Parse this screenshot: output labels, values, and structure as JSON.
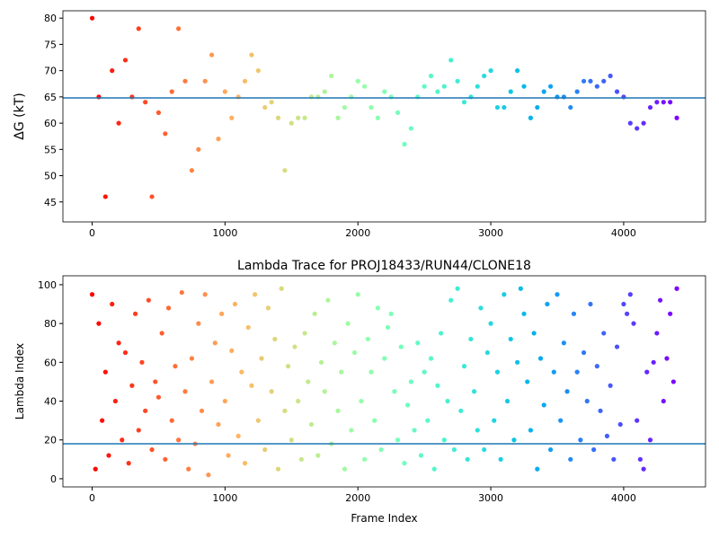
{
  "chart_data": [
    {
      "type": "scatter",
      "ylabel": "ΔG (kT)",
      "colormap": "rainbow_r",
      "hline": 64.8,
      "hline_color": "#1f77b4",
      "xlim": [
        -220,
        4616
      ],
      "xticks": [
        0,
        1000,
        2000,
        3000,
        4000
      ],
      "ylim": [
        41.2,
        81.4
      ],
      "yticks": [
        45,
        50,
        55,
        60,
        65,
        70,
        75,
        80
      ],
      "x": [
        0,
        50,
        100,
        150,
        200,
        250,
        300,
        350,
        400,
        450,
        500,
        550,
        600,
        650,
        700,
        750,
        800,
        850,
        900,
        950,
        1000,
        1050,
        1100,
        1150,
        1200,
        1250,
        1300,
        1350,
        1400,
        1450,
        1500,
        1550,
        1600,
        1650,
        1700,
        1750,
        1800,
        1850,
        1900,
        1950,
        2000,
        2050,
        2100,
        2150,
        2200,
        2250,
        2300,
        2350,
        2400,
        2450,
        2500,
        2550,
        2600,
        2650,
        2700,
        2750,
        2800,
        2850,
        2900,
        2950,
        3000,
        3050,
        3100,
        3150,
        3200,
        3250,
        3300,
        3350,
        3400,
        3450,
        3500,
        3550,
        3600,
        3650,
        3700,
        3750,
        3800,
        3850,
        3900,
        3950,
        4000,
        4050,
        4100,
        4150,
        4200,
        4250,
        4300,
        4350,
        4400
      ],
      "y": [
        80,
        65,
        46,
        70,
        60,
        72,
        65,
        78,
        64,
        46,
        62,
        58,
        66,
        78,
        68,
        51,
        55,
        68,
        73,
        57,
        66,
        61,
        65,
        68,
        73,
        70,
        63,
        64,
        61,
        51,
        60,
        61,
        61,
        65,
        65,
        66,
        69,
        61,
        63,
        65,
        68,
        67,
        63,
        61,
        66,
        65,
        62,
        56,
        59,
        65,
        67,
        69,
        66,
        67,
        72,
        68,
        64,
        65,
        67,
        69,
        70,
        63,
        63,
        66,
        70,
        67,
        61,
        63,
        66,
        67,
        65,
        65,
        63,
        66,
        68,
        68,
        67,
        68,
        69,
        66,
        65,
        60,
        59,
        60,
        63,
        64,
        64,
        64,
        61
      ]
    },
    {
      "type": "scatter",
      "title": "Lambda Trace for PROJ18433/RUN44/CLONE18",
      "xlabel": "Frame Index",
      "ylabel": "Lambda Index",
      "colormap": "rainbow_r",
      "hline": 18,
      "hline_color": "#1f77b4",
      "xlim": [
        -220,
        4616
      ],
      "xticks": [
        0,
        1000,
        2000,
        3000,
        4000
      ],
      "ylim": [
        -4.2,
        104.6
      ],
      "yticks": [
        0,
        20,
        40,
        60,
        80,
        100
      ],
      "x": [
        0,
        25,
        50,
        75,
        100,
        125,
        150,
        175,
        200,
        225,
        250,
        275,
        300,
        325,
        350,
        375,
        400,
        425,
        450,
        475,
        500,
        525,
        550,
        575,
        600,
        625,
        650,
        675,
        700,
        725,
        750,
        775,
        800,
        825,
        850,
        875,
        900,
        925,
        950,
        975,
        1000,
        1025,
        1050,
        1075,
        1100,
        1125,
        1150,
        1175,
        1200,
        1225,
        1250,
        1275,
        1300,
        1325,
        1350,
        1375,
        1400,
        1425,
        1450,
        1475,
        1500,
        1525,
        1550,
        1575,
        1600,
        1625,
        1650,
        1675,
        1700,
        1725,
        1750,
        1775,
        1800,
        1825,
        1850,
        1875,
        1900,
        1925,
        1950,
        1975,
        2000,
        2025,
        2050,
        2075,
        2100,
        2125,
        2150,
        2175,
        2200,
        2225,
        2250,
        2275,
        2300,
        2325,
        2350,
        2375,
        2400,
        2425,
        2450,
        2475,
        2500,
        2525,
        2550,
        2575,
        2600,
        2625,
        2650,
        2675,
        2700,
        2725,
        2750,
        2775,
        2800,
        2825,
        2850,
        2875,
        2900,
        2925,
        2950,
        2975,
        3000,
        3025,
        3050,
        3075,
        3100,
        3125,
        3150,
        3175,
        3200,
        3225,
        3250,
        3275,
        3300,
        3325,
        3350,
        3375,
        3400,
        3425,
        3450,
        3475,
        3500,
        3525,
        3550,
        3575,
        3600,
        3625,
        3650,
        3675,
        3700,
        3725,
        3750,
        3775,
        3800,
        3825,
        3850,
        3875,
        3900,
        3925,
        3950,
        3975,
        4000,
        4025,
        4050,
        4075,
        4100,
        4125,
        4150,
        4175,
        4200,
        4225,
        4250,
        4275,
        4300,
        4325,
        4350,
        4375,
        4400
      ],
      "y": [
        95,
        5,
        80,
        30,
        55,
        12,
        90,
        40,
        70,
        20,
        65,
        8,
        48,
        85,
        25,
        60,
        35,
        92,
        15,
        50,
        42,
        75,
        10,
        88,
        30,
        58,
        20,
        96,
        45,
        5,
        62,
        18,
        80,
        35,
        95,
        2,
        50,
        70,
        28,
        85,
        40,
        12,
        66,
        90,
        22,
        55,
        8,
        78,
        48,
        95,
        30,
        62,
        15,
        88,
        45,
        72,
        5,
        98,
        35,
        58,
        20,
        68,
        40,
        10,
        75,
        50,
        28,
        85,
        12,
        60,
        45,
        92,
        18,
        70,
        35,
        55,
        5,
        80,
        25,
        65,
        95,
        40,
        10,
        72,
        55,
        30,
        88,
        15,
        62,
        78,
        85,
        45,
        20,
        68,
        8,
        38,
        50,
        25,
        70,
        12,
        55,
        30,
        62,
        5,
        48,
        75,
        20,
        40,
        92,
        15,
        98,
        35,
        58,
        10,
        72,
        45,
        25,
        88,
        15,
        65,
        80,
        30,
        55,
        10,
        95,
        40,
        72,
        20,
        60,
        98,
        85,
        50,
        25,
        75,
        5,
        62,
        38,
        90,
        15,
        55,
        95,
        30,
        70,
        45,
        10,
        85,
        55,
        20,
        65,
        40,
        90,
        15,
        58,
        35,
        75,
        22,
        48,
        10,
        68,
        28,
        90,
        85,
        95,
        80,
        30,
        10,
        5,
        55,
        20,
        60,
        75,
        92,
        40,
        62,
        85,
        50,
        98
      ]
    }
  ]
}
